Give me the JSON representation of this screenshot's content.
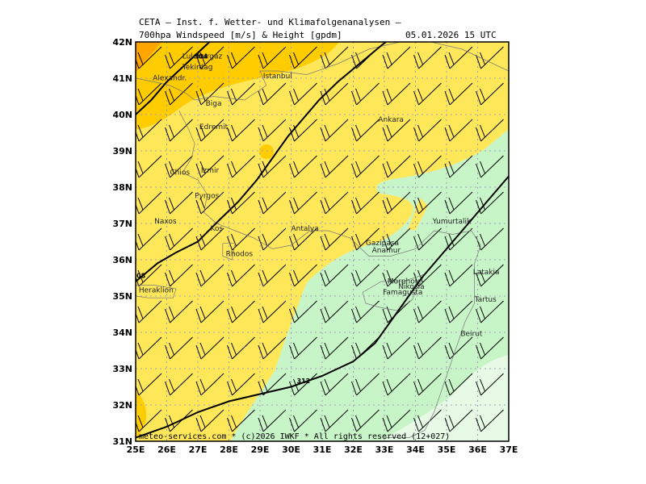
{
  "header": {
    "line1": "CETA — Inst. f. Wetter- und Klimafolgenanalysen —",
    "line2": "700hpa Windspeed [m/s] & Height [gpdm]",
    "valid": "05.01.2026 15 UTC"
  },
  "axes": {
    "lat_labels": [
      "42N",
      "41N",
      "40N",
      "39N",
      "38N",
      "37N",
      "36N",
      "35N",
      "34N",
      "33N",
      "32N",
      "31N"
    ],
    "lon_labels": [
      "25E",
      "26E",
      "27E",
      "28E",
      "29E",
      "30E",
      "31E",
      "32E",
      "33E",
      "34E",
      "35E",
      "36E",
      "37E"
    ]
  },
  "contours": [
    {
      "label": "304",
      "points": [
        [
          25,
          40.0
        ],
        [
          25.5,
          40.4
        ],
        [
          26,
          40.9
        ],
        [
          26.5,
          41.3
        ],
        [
          27,
          41.7
        ],
        [
          27.5,
          42.1
        ]
      ]
    },
    {
      "label": "308",
      "points": [
        [
          25,
          35.4
        ],
        [
          25.7,
          35.9
        ],
        [
          26.3,
          36.2
        ],
        [
          27,
          36.5
        ],
        [
          27.7,
          37.1
        ],
        [
          28.3,
          37.6
        ],
        [
          28.9,
          38.2
        ],
        [
          29.4,
          38.8
        ],
        [
          29.9,
          39.4
        ],
        [
          30.4,
          39.9
        ],
        [
          30.9,
          40.4
        ],
        [
          31.5,
          40.9
        ],
        [
          32.2,
          41.4
        ],
        [
          32.9,
          41.9
        ],
        [
          33.2,
          42.1
        ]
      ]
    },
    {
      "label": "312",
      "points": [
        [
          25,
          31.1
        ],
        [
          26,
          31.4
        ],
        [
          27,
          31.8
        ],
        [
          28,
          32.1
        ],
        [
          29,
          32.3
        ],
        [
          30,
          32.5
        ],
        [
          31,
          32.8
        ],
        [
          32,
          33.2
        ],
        [
          32.7,
          33.7
        ],
        [
          33.2,
          34.3
        ],
        [
          33.7,
          34.9
        ],
        [
          34.2,
          35.5
        ],
        [
          34.7,
          36.0
        ],
        [
          35.2,
          36.5
        ],
        [
          35.7,
          37.0
        ],
        [
          36.3,
          37.6
        ],
        [
          37,
          38.3
        ]
      ]
    }
  ],
  "cities": [
    {
      "name": "Luleburgaz",
      "lon": 26.5,
      "lat": 41.55
    },
    {
      "name": "Tekirdag",
      "lon": 26.5,
      "lat": 41.25
    },
    {
      "name": "Alexandr.",
      "lon": 25.55,
      "lat": 40.95
    },
    {
      "name": "Istanbul",
      "lon": 29.1,
      "lat": 41.0
    },
    {
      "name": "Biga",
      "lon": 27.25,
      "lat": 40.25
    },
    {
      "name": "Ankara",
      "lon": 32.8,
      "lat": 39.8
    },
    {
      "name": "Edremit",
      "lon": 27.05,
      "lat": 39.6
    },
    {
      "name": "Chios",
      "lon": 26.1,
      "lat": 38.35
    },
    {
      "name": "Izmir",
      "lon": 27.1,
      "lat": 38.4
    },
    {
      "name": "Pyrgos",
      "lon": 26.9,
      "lat": 37.7
    },
    {
      "name": "Naxos",
      "lon": 25.6,
      "lat": 37.0
    },
    {
      "name": "Kos",
      "lon": 27.4,
      "lat": 36.8
    },
    {
      "name": "Antalya",
      "lon": 30.0,
      "lat": 36.8
    },
    {
      "name": "Rhodos",
      "lon": 27.9,
      "lat": 36.1
    },
    {
      "name": "Yumurtalik",
      "lon": 34.55,
      "lat": 37.0
    },
    {
      "name": "Gazipasa",
      "lon": 32.4,
      "lat": 36.4
    },
    {
      "name": "Anamur",
      "lon": 32.6,
      "lat": 36.2
    },
    {
      "name": "Latakia",
      "lon": 35.85,
      "lat": 35.6
    },
    {
      "name": "Heraklion",
      "lon": 25.1,
      "lat": 35.1
    },
    {
      "name": "Morphou",
      "lon": 33.1,
      "lat": 35.35
    },
    {
      "name": "Nikosia",
      "lon": 33.45,
      "lat": 35.2
    },
    {
      "name": "Famagusta",
      "lon": 32.95,
      "lat": 35.05
    },
    {
      "name": "Tartus",
      "lon": 35.9,
      "lat": 34.85
    },
    {
      "name": "Beirut",
      "lon": 35.45,
      "lat": 33.9
    }
  ],
  "footer": "meteo-services.com * (c)2026 IWKF * All rights reserved (12+027)",
  "colors": {
    "wind_10_15": "#ffe75a",
    "wind_15_20": "#ffcc00",
    "wind_20_25": "#ffa500",
    "wind_5_10": "#c8f5c8",
    "wind_0_5": "#e6fae6",
    "grid": "#a0a0b4"
  }
}
